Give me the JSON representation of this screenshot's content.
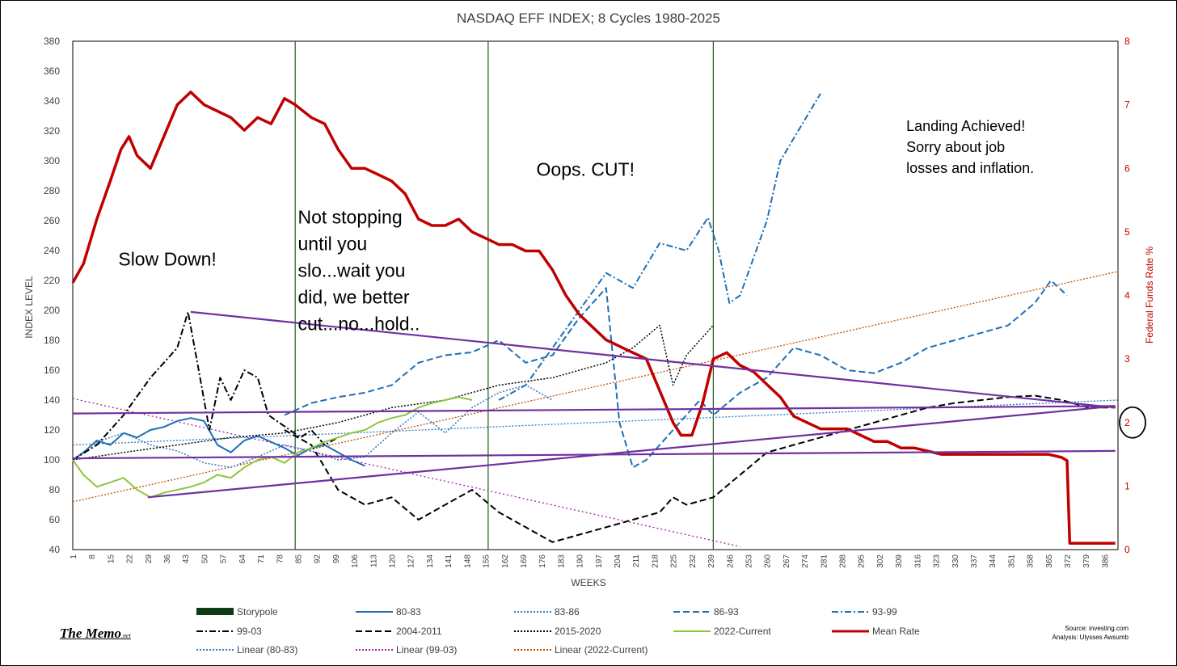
{
  "chart_data": {
    "type": "line",
    "title": "NASDAQ EFF INDEX; 8 Cycles 1980-2025",
    "xlabel": "WEEKS",
    "ylabel": "INDEX LEVEL",
    "y2label": "Federal Funds Rate %",
    "xlim": [
      1,
      391
    ],
    "ylim": [
      40,
      380
    ],
    "y2lim": [
      0,
      8
    ],
    "x_ticks": [
      1,
      8,
      15,
      22,
      29,
      36,
      43,
      50,
      57,
      64,
      71,
      78,
      85,
      92,
      99,
      106,
      113,
      120,
      127,
      134,
      141,
      148,
      155,
      162,
      169,
      176,
      183,
      190,
      197,
      204,
      211,
      218,
      225,
      232,
      239,
      246,
      253,
      260,
      267,
      274,
      281,
      288,
      295,
      302,
      309,
      316,
      323,
      330,
      337,
      344,
      351,
      358,
      365,
      372,
      379,
      386
    ],
    "y_ticks": [
      40,
      60,
      80,
      100,
      120,
      140,
      160,
      180,
      200,
      220,
      240,
      260,
      280,
      300,
      320,
      340,
      360,
      380
    ],
    "y2_ticks": [
      0,
      1,
      2,
      3,
      4,
      5,
      6,
      7,
      8
    ],
    "vlines": [
      84,
      156,
      240
    ],
    "grid": false,
    "legend_position": "bottom",
    "legend": [
      {
        "name": "Storypole",
        "color": "#0e3b13",
        "style": "block"
      },
      {
        "name": "80-83",
        "color": "#1f6fb4",
        "style": "solid"
      },
      {
        "name": "83-86",
        "color": "#2e7bc4",
        "style": "dotted"
      },
      {
        "name": "86-93",
        "color": "#1f6fb4",
        "style": "dashed"
      },
      {
        "name": "93-99",
        "color": "#1f6fb4",
        "style": "dashdot"
      },
      {
        "name": "99-03",
        "color": "#000000",
        "style": "dashdot"
      },
      {
        "name": "2004-2011",
        "color": "#000000",
        "style": "dashed"
      },
      {
        "name": "2015-2020",
        "color": "#000000",
        "style": "dotted"
      },
      {
        "name": "2022-Current",
        "color": "#8dc63f",
        "style": "solid"
      },
      {
        "name": "Mean Rate",
        "color": "#c00000",
        "style": "thick"
      },
      {
        "name": "Linear (80-83)",
        "color": "#2e7bc4",
        "style": "dotted"
      },
      {
        "name": "Linear (99-03)",
        "color": "#a020a0",
        "style": "dotted"
      },
      {
        "name": "Linear (2022-Current)",
        "color": "#c05000",
        "style": "dotted"
      }
    ],
    "series": [
      {
        "name": "80-83",
        "color": "#1f6fb4",
        "dash": "",
        "width": 2,
        "x": [
          1,
          5,
          10,
          15,
          20,
          25,
          30,
          35,
          40,
          45,
          50,
          55,
          60,
          65,
          70,
          75,
          80,
          85,
          90,
          95,
          100,
          105,
          110
        ],
        "y": [
          100,
          105,
          113,
          110,
          118,
          115,
          120,
          122,
          126,
          128,
          126,
          110,
          105,
          113,
          116,
          112,
          108,
          103,
          108,
          110,
          105,
          100,
          96
        ]
      },
      {
        "name": "83-86",
        "color": "#2e7bc4",
        "dash": "2,2",
        "width": 1.5,
        "x": [
          1,
          10,
          20,
          30,
          40,
          50,
          60,
          70,
          80,
          90,
          100,
          110,
          120,
          130,
          140,
          150,
          160,
          170,
          180
        ],
        "y": [
          100,
          112,
          118,
          110,
          106,
          98,
          95,
          102,
          110,
          106,
          100,
          102,
          118,
          132,
          118,
          135,
          145,
          150,
          140
        ]
      },
      {
        "name": "86-93",
        "color": "#1f6fb4",
        "dash": "8,4",
        "width": 2,
        "x": [
          80,
          90,
          100,
          110,
          120,
          130,
          140,
          150,
          160,
          170,
          180,
          190,
          200,
          205,
          210,
          215,
          220,
          225,
          230,
          235,
          240,
          250,
          260,
          270,
          280,
          290,
          300,
          310,
          320,
          330,
          340,
          350,
          360,
          366,
          372
        ],
        "y": [
          130,
          138,
          142,
          145,
          150,
          165,
          170,
          172,
          180,
          165,
          170,
          195,
          215,
          125,
          95,
          100,
          110,
          120,
          130,
          140,
          130,
          145,
          155,
          175,
          170,
          160,
          158,
          165,
          175,
          180,
          185,
          190,
          205,
          220,
          210
        ]
      },
      {
        "name": "93-99",
        "color": "#1f6fb4",
        "dash": "8,3,2,3",
        "width": 2,
        "x": [
          160,
          170,
          180,
          190,
          200,
          210,
          220,
          230,
          238,
          242,
          246,
          250,
          255,
          260,
          265,
          270,
          275,
          280
        ],
        "y": [
          140,
          150,
          175,
          200,
          225,
          215,
          245,
          240,
          262,
          240,
          205,
          210,
          235,
          260,
          300,
          315,
          330,
          345
        ]
      },
      {
        "name": "99-03",
        "color": "#000000",
        "dash": "8,3,2,3",
        "width": 2,
        "x": [
          1,
          10,
          20,
          30,
          40,
          44,
          48,
          52,
          56,
          60,
          65,
          70,
          74,
          78,
          82,
          86,
          90,
          95,
          100
        ],
        "y": [
          100,
          110,
          130,
          155,
          175,
          199,
          160,
          120,
          155,
          140,
          160,
          155,
          130,
          125,
          120,
          115,
          120,
          110,
          115
        ]
      },
      {
        "name": "2004-2011",
        "color": "#000000",
        "dash": "8,4",
        "width": 2,
        "x": [
          80,
          90,
          100,
          110,
          120,
          130,
          140,
          150,
          160,
          170,
          180,
          190,
          200,
          210,
          220,
          225,
          230,
          240,
          250,
          260,
          270,
          280,
          290,
          300,
          310,
          320,
          330,
          340,
          350,
          360,
          370,
          380,
          390
        ],
        "y": [
          120,
          110,
          80,
          70,
          75,
          60,
          70,
          80,
          65,
          55,
          45,
          50,
          55,
          60,
          65,
          75,
          70,
          75,
          90,
          105,
          110,
          115,
          120,
          125,
          130,
          135,
          138,
          140,
          142,
          143,
          140,
          135,
          135
        ]
      },
      {
        "name": "2015-2020",
        "color": "#000000",
        "dash": "2,2",
        "width": 1.5,
        "x": [
          1,
          20,
          40,
          60,
          80,
          100,
          120,
          140,
          160,
          180,
          200,
          210,
          220,
          225,
          230,
          235,
          240
        ],
        "y": [
          100,
          105,
          110,
          115,
          118,
          125,
          135,
          140,
          150,
          155,
          165,
          175,
          190,
          150,
          170,
          180,
          190
        ]
      },
      {
        "name": "2022-Current",
        "color": "#8dc63f",
        "dash": "",
        "width": 2,
        "x": [
          1,
          5,
          10,
          15,
          20,
          25,
          30,
          35,
          40,
          45,
          50,
          55,
          60,
          65,
          70,
          75,
          80,
          85,
          90,
          95,
          100,
          105,
          110,
          115,
          120,
          125,
          130,
          135,
          140,
          145,
          150
        ],
        "y": [
          100,
          90,
          82,
          85,
          88,
          80,
          75,
          78,
          80,
          82,
          85,
          90,
          88,
          95,
          100,
          102,
          98,
          105,
          108,
          112,
          115,
          118,
          120,
          125,
          128,
          130,
          135,
          138,
          140,
          142,
          140
        ]
      },
      {
        "name": "Mean Rate",
        "color": "#c00000",
        "dash": "",
        "width": 3.5,
        "axis": "y2",
        "x": [
          1,
          5,
          10,
          15,
          19,
          22,
          25,
          30,
          35,
          40,
          45,
          50,
          55,
          60,
          65,
          70,
          75,
          80,
          84,
          90,
          95,
          100,
          105,
          110,
          115,
          120,
          125,
          130,
          135,
          140,
          145,
          150,
          155,
          160,
          165,
          170,
          175,
          180,
          185,
          190,
          195,
          200,
          205,
          210,
          215,
          220,
          225,
          228,
          232,
          236,
          240,
          245,
          250,
          255,
          260,
          265,
          270,
          275,
          280,
          285,
          290,
          295,
          300,
          305,
          310,
          315,
          320,
          325,
          330,
          335,
          340,
          345,
          350,
          355,
          360,
          365,
          370,
          372,
          373,
          375,
          380,
          385,
          390
        ],
        "y": [
          4.2,
          4.5,
          5.2,
          5.8,
          6.3,
          6.5,
          6.2,
          6.0,
          6.5,
          7.0,
          7.2,
          7.0,
          6.9,
          6.8,
          6.6,
          6.8,
          6.7,
          7.1,
          7.0,
          6.8,
          6.7,
          6.3,
          6.0,
          6.0,
          5.9,
          5.8,
          5.6,
          5.2,
          5.1,
          5.1,
          5.2,
          5.0,
          4.9,
          4.8,
          4.8,
          4.7,
          4.7,
          4.4,
          4.0,
          3.7,
          3.5,
          3.3,
          3.2,
          3.1,
          3.0,
          2.5,
          2.0,
          1.8,
          1.8,
          2.3,
          3.0,
          3.1,
          2.9,
          2.8,
          2.6,
          2.4,
          2.1,
          2.0,
          1.9,
          1.9,
          1.9,
          1.8,
          1.7,
          1.7,
          1.6,
          1.6,
          1.55,
          1.5,
          1.5,
          1.5,
          1.5,
          1.5,
          1.5,
          1.5,
          1.5,
          1.5,
          1.45,
          1.4,
          0.1,
          0.1,
          0.1,
          0.1,
          0.1
        ]
      }
    ],
    "trendlines": [
      {
        "name": "Linear (80-83)",
        "color": "#2e7bc4",
        "dash": "2,2",
        "width": 1.3,
        "x": [
          1,
          391
        ],
        "y": [
          110,
          140
        ]
      },
      {
        "name": "Linear (99-03)",
        "color": "#a020a0",
        "dash": "2,3",
        "width": 1.3,
        "x": [
          1,
          250
        ],
        "y": [
          141,
          42
        ]
      },
      {
        "name": "Linear (2022-Current)",
        "color": "#c05000",
        "dash": "2,2",
        "width": 1.3,
        "x": [
          1,
          391
        ],
        "y": [
          72,
          226
        ]
      }
    ],
    "storypole_lines": [
      {
        "x": [
          45,
          390
        ],
        "y": [
          199,
          135
        ]
      },
      {
        "x": [
          1,
          390
        ],
        "y": [
          131,
          136
        ]
      },
      {
        "x": [
          1,
          390
        ],
        "y": [
          101,
          106
        ]
      },
      {
        "x": [
          29,
          390
        ],
        "y": [
          75,
          136
        ]
      }
    ],
    "storypole_color": "#7030a0",
    "callout_circle": {
      "axis": "y2",
      "value": 2
    },
    "annotations": [
      {
        "text": [
          "Slow Down!"
        ],
        "x": 18,
        "y": 230
      },
      {
        "text": [
          "Not stopping",
          "until you",
          "slo...wait you",
          "did, we better",
          "cut...no...hold.."
        ],
        "x": 85,
        "y": 258
      },
      {
        "text": [
          "Oops. CUT!"
        ],
        "x": 174,
        "y": 290
      },
      {
        "text": [
          "Landing Achieved!",
          "Sorry about job",
          "losses and inflation."
        ],
        "x": 312,
        "y": 320
      }
    ]
  },
  "footer": {
    "brand": "The Memo",
    "brand_suffix": ".net",
    "source": "Source: investing.com",
    "analysis": "Analysis: Ulysses Awsumb"
  }
}
